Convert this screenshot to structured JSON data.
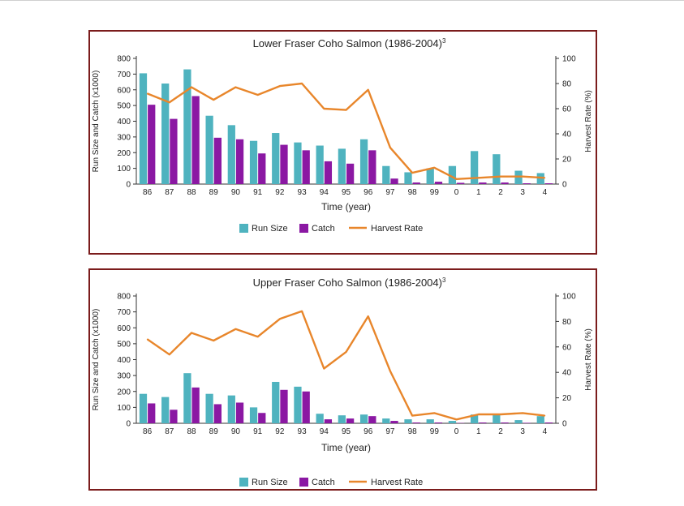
{
  "colors": {
    "run_size": "#4fb3bf",
    "catch": "#8b18a3",
    "harvest_rate": "#e8862b",
    "border": "#7b1c1c"
  },
  "chart_data": [
    {
      "type": "bar",
      "title": "Lower Fraser Coho Salmon (1986-2004)",
      "title_superscript": "3",
      "xlabel": "Time (year)",
      "ylabel": "Run Size and Catch (x1000)",
      "y2label": "Harvest Rate (%)",
      "ylim": [
        0,
        800
      ],
      "y2lim": [
        0,
        100
      ],
      "yticks": [
        "0",
        "100",
        "200",
        "300",
        "400",
        "500",
        "600",
        "700",
        "800"
      ],
      "y2ticks": [
        "0",
        "20",
        "40",
        "60",
        "80",
        "100"
      ],
      "legend_position": "bottom",
      "categories": [
        "86",
        "87",
        "88",
        "89",
        "90",
        "91",
        "92",
        "93",
        "94",
        "95",
        "96",
        "97",
        "98",
        "99",
        "0",
        "1",
        "2",
        "3",
        "4"
      ],
      "series": [
        {
          "name": "Run Size",
          "type": "bar",
          "values": [
            705,
            640,
            730,
            435,
            375,
            275,
            325,
            265,
            245,
            225,
            285,
            115,
            75,
            100,
            115,
            210,
            190,
            85,
            70
          ]
        },
        {
          "name": "Catch",
          "type": "bar",
          "values": [
            505,
            415,
            560,
            295,
            285,
            195,
            250,
            215,
            145,
            130,
            215,
            35,
            10,
            15,
            8,
            10,
            10,
            5,
            5
          ]
        },
        {
          "name": "Harvest Rate",
          "type": "line",
          "axis": "right",
          "values": [
            72,
            65,
            77,
            67,
            77,
            71,
            78,
            80,
            60,
            59,
            75,
            29,
            9,
            13,
            4,
            5,
            6,
            6,
            5
          ]
        }
      ]
    },
    {
      "type": "bar",
      "title": "Upper Fraser Coho Salmon (1986-2004)",
      "title_superscript": "3",
      "xlabel": "Time (year)",
      "ylabel": "Run Size and Catch (x1000)",
      "y2label": "Harvest Rate (%)",
      "ylim": [
        0,
        800
      ],
      "y2lim": [
        0,
        100
      ],
      "yticks": [
        "0",
        "100",
        "200",
        "300",
        "400",
        "500",
        "600",
        "700",
        "800"
      ],
      "y2ticks": [
        "0",
        "20",
        "40",
        "60",
        "80",
        "100"
      ],
      "legend_position": "bottom",
      "categories": [
        "86",
        "87",
        "88",
        "89",
        "90",
        "91",
        "92",
        "93",
        "94",
        "95",
        "96",
        "97",
        "98",
        "99",
        "0",
        "1",
        "2",
        "3",
        "4"
      ],
      "series": [
        {
          "name": "Run Size",
          "type": "bar",
          "values": [
            185,
            165,
            315,
            185,
            175,
            100,
            260,
            230,
            60,
            50,
            55,
            30,
            25,
            25,
            15,
            55,
            55,
            20,
            45
          ]
        },
        {
          "name": "Catch",
          "type": "bar",
          "values": [
            125,
            85,
            225,
            120,
            130,
            65,
            210,
            200,
            25,
            30,
            45,
            15,
            5,
            5,
            2,
            5,
            5,
            3,
            5
          ]
        },
        {
          "name": "Harvest Rate",
          "type": "line",
          "axis": "right",
          "values": [
            66,
            54,
            71,
            65,
            74,
            68,
            82,
            88,
            43,
            56,
            84,
            41,
            6,
            8,
            3,
            7,
            7,
            8,
            6
          ]
        }
      ]
    }
  ]
}
